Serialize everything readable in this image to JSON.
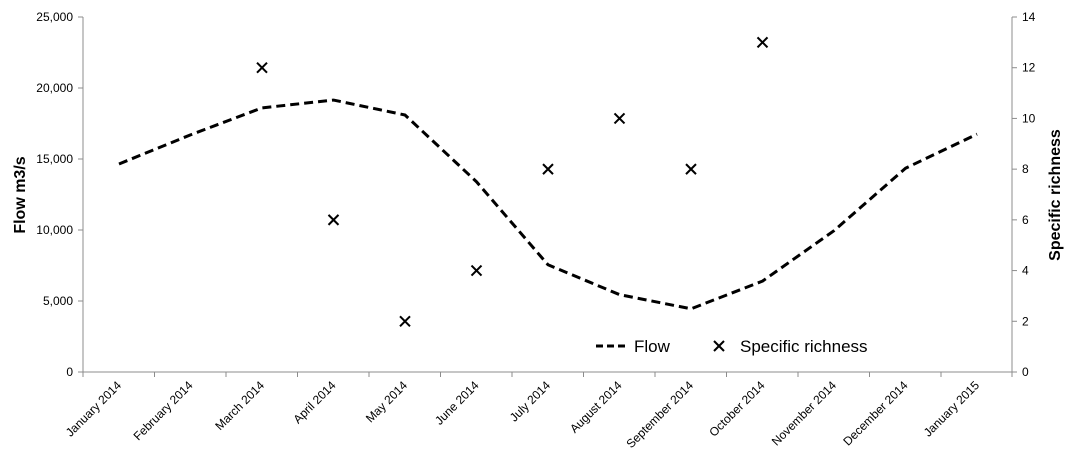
{
  "chart_data": {
    "type": "line",
    "title": "",
    "categories": [
      "January 2014",
      "February 2014",
      "March 2014",
      "April 2014",
      "May 2014",
      "June 2014",
      "July 2014",
      "August 2014",
      "September 2014",
      "October 2014",
      "November 2014",
      "December 2014",
      "January 2015"
    ],
    "series": [
      {
        "name": "Flow",
        "type": "line",
        "axis": "left",
        "style": "dashed",
        "color": "#000000",
        "values": [
          14650,
          16700,
          18600,
          19150,
          18100,
          13400,
          7550,
          5450,
          4450,
          6400,
          9950,
          14350,
          16750
        ]
      },
      {
        "name": "Specific richness",
        "type": "scatter",
        "axis": "right",
        "marker": "x",
        "color": "#000000",
        "x": [
          "March 2014",
          "April 2014",
          "May 2014",
          "June 2014",
          "July 2014",
          "August 2014",
          "September 2014",
          "October 2014"
        ],
        "values": [
          12,
          6,
          2,
          4,
          8,
          10,
          8,
          13
        ]
      }
    ],
    "y_left": {
      "label": "Flow m3/s",
      "range": [
        0,
        25000
      ],
      "ticks": [
        0,
        5000,
        10000,
        15000,
        20000,
        25000
      ],
      "tick_labels": [
        "0",
        "5,000",
        "10,000",
        "15,000",
        "20,000",
        "25,000"
      ]
    },
    "y_right": {
      "label": "Specific richness",
      "range": [
        0,
        14
      ],
      "ticks": [
        0,
        2,
        4,
        6,
        8,
        10,
        12,
        14
      ],
      "tick_labels": [
        "0",
        "2",
        "4",
        "6",
        "8",
        "10",
        "12",
        "14"
      ]
    },
    "grid": false,
    "legend": {
      "placement": "bottom-right",
      "entries": [
        "Flow",
        "Specific richness"
      ]
    }
  }
}
